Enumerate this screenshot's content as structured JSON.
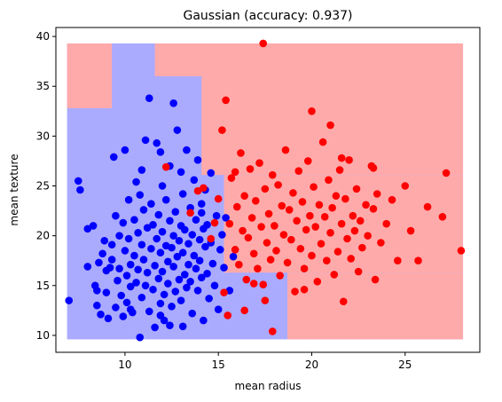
{
  "chart_data": {
    "type": "scatter",
    "title": "Gaussian (accuracy: 0.937)",
    "xlabel": "mean radius",
    "ylabel": "mean texture",
    "xlim": [
      6.3,
      29.0
    ],
    "ylim": [
      8.3,
      40.9
    ],
    "xticks": [
      10,
      15,
      20,
      25
    ],
    "yticks": [
      10,
      15,
      20,
      25,
      30,
      35,
      40
    ],
    "grid": false,
    "colors": {
      "class_a": "#0000ff",
      "class_b": "#ff0000",
      "region_a": "#aaaaff",
      "region_b": "#ffaaaa"
    },
    "decision_regions": {
      "extent_x": [
        6.9,
        28.1
      ],
      "extent_y": [
        9.6,
        39.3
      ],
      "region_b_rects": [
        {
          "x0": 6.9,
          "x1": 9.3,
          "y0": 32.8,
          "y1": 39.3
        },
        {
          "x0": 11.6,
          "x1": 28.1,
          "y0": 36.0,
          "y1": 39.3
        },
        {
          "x0": 14.1,
          "x1": 28.1,
          "y0": 26.1,
          "y1": 36.0
        },
        {
          "x0": 15.3,
          "x1": 28.1,
          "y0": 16.3,
          "y1": 26.1
        },
        {
          "x0": 18.7,
          "x1": 28.1,
          "y0": 9.6,
          "y1": 16.3
        }
      ]
    },
    "series": [
      {
        "class": "a",
        "points": [
          [
            7.0,
            13.5
          ],
          [
            7.5,
            25.5
          ],
          [
            7.6,
            24.6
          ],
          [
            8.0,
            16.9
          ],
          [
            8.0,
            20.7
          ],
          [
            8.3,
            21.0
          ],
          [
            8.4,
            15.0
          ],
          [
            8.5,
            13.0
          ],
          [
            8.5,
            14.5
          ],
          [
            8.6,
            17.3
          ],
          [
            8.7,
            12.1
          ],
          [
            8.8,
            18.2
          ],
          [
            8.9,
            19.5
          ],
          [
            9.0,
            16.5
          ],
          [
            9.0,
            14.3
          ],
          [
            9.1,
            11.7
          ],
          [
            9.2,
            16.8
          ],
          [
            9.3,
            19.1
          ],
          [
            9.3,
            17.6
          ],
          [
            9.4,
            27.9
          ],
          [
            9.5,
            12.8
          ],
          [
            9.5,
            22.0
          ],
          [
            9.6,
            15.5
          ],
          [
            9.7,
            20.0
          ],
          [
            9.7,
            16.7
          ],
          [
            9.8,
            14.0
          ],
          [
            9.9,
            21.3
          ],
          [
            10.0,
            28.6
          ],
          [
            10.0,
            18.5
          ],
          [
            10.1,
            13.3
          ],
          [
            10.1,
            16.0
          ],
          [
            10.2,
            23.6
          ],
          [
            10.2,
            19.7
          ],
          [
            10.3,
            17.1
          ],
          [
            10.3,
            14.9
          ],
          [
            10.4,
            12.3
          ],
          [
            10.5,
            21.6
          ],
          [
            10.5,
            18.0
          ],
          [
            10.6,
            25.4
          ],
          [
            10.6,
            15.3
          ],
          [
            10.7,
            20.3
          ],
          [
            10.7,
            16.6
          ],
          [
            10.8,
            9.8
          ],
          [
            10.8,
            24.1
          ],
          [
            10.9,
            13.8
          ],
          [
            10.9,
            19.1
          ],
          [
            11.0,
            22.6
          ],
          [
            11.0,
            17.6
          ],
          [
            11.1,
            15.0
          ],
          [
            11.1,
            29.6
          ],
          [
            11.2,
            20.8
          ],
          [
            11.2,
            16.3
          ],
          [
            11.3,
            33.8
          ],
          [
            11.3,
            12.4
          ],
          [
            11.4,
            18.7
          ],
          [
            11.4,
            23.2
          ],
          [
            11.5,
            14.6
          ],
          [
            11.5,
            21.1
          ],
          [
            11.6,
            10.8
          ],
          [
            11.6,
            17.0
          ],
          [
            11.7,
            19.7
          ],
          [
            11.7,
            29.3
          ],
          [
            11.8,
            15.7
          ],
          [
            11.8,
            22.1
          ],
          [
            11.9,
            13.2
          ],
          [
            11.9,
            18.3
          ],
          [
            12.0,
            25.0
          ],
          [
            12.0,
            16.4
          ],
          [
            12.0,
            20.4
          ],
          [
            12.1,
            14.1
          ],
          [
            12.1,
            11.5
          ],
          [
            12.2,
            19.0
          ],
          [
            12.2,
            23.6
          ],
          [
            12.3,
            17.4
          ],
          [
            12.3,
            15.2
          ],
          [
            12.4,
            27.0
          ],
          [
            12.4,
            21.5
          ],
          [
            12.5,
            18.8
          ],
          [
            12.5,
            12.9
          ],
          [
            12.6,
            16.9
          ],
          [
            12.6,
            20.0
          ],
          [
            12.7,
            14.4
          ],
          [
            12.7,
            22.4
          ],
          [
            12.8,
            17.9
          ],
          [
            12.8,
            30.6
          ],
          [
            12.9,
            19.5
          ],
          [
            12.9,
            15.6
          ],
          [
            13.0,
            21.0
          ],
          [
            13.0,
            13.5
          ],
          [
            13.1,
            18.3
          ],
          [
            13.1,
            24.2
          ],
          [
            13.2,
            16.1
          ],
          [
            13.2,
            20.6
          ],
          [
            13.3,
            14.8
          ],
          [
            13.3,
            28.6
          ],
          [
            13.4,
            19.2
          ],
          [
            13.4,
            17.1
          ],
          [
            13.5,
            22.8
          ],
          [
            13.5,
            15.4
          ],
          [
            13.6,
            20.1
          ],
          [
            13.6,
            12.2
          ],
          [
            13.7,
            18.0
          ],
          [
            13.7,
            25.6
          ],
          [
            13.8,
            16.7
          ],
          [
            13.8,
            21.6
          ],
          [
            13.9,
            14.5
          ],
          [
            13.9,
            27.6
          ],
          [
            14.0,
            19.6
          ],
          [
            14.0,
            17.5
          ],
          [
            14.1,
            15.8
          ],
          [
            14.1,
            22.3
          ],
          [
            14.2,
            20.7
          ],
          [
            14.2,
            11.5
          ],
          [
            14.3,
            18.9
          ],
          [
            14.3,
            24.6
          ],
          [
            14.4,
            16.2
          ],
          [
            14.4,
            21.1
          ],
          [
            14.5,
            13.7
          ],
          [
            14.6,
            19.3
          ],
          [
            14.6,
            26.3
          ],
          [
            14.7,
            17.2
          ],
          [
            14.8,
            15.0
          ],
          [
            14.9,
            22.0
          ],
          [
            15.0,
            12.6
          ],
          [
            15.1,
            18.6
          ],
          [
            15.2,
            20.1
          ],
          [
            15.3,
            16.8
          ],
          [
            15.4,
            21.8
          ],
          [
            15.6,
            14.5
          ],
          [
            15.8,
            17.9
          ],
          [
            11.9,
            12.0
          ],
          [
            12.4,
            11.0
          ],
          [
            13.1,
            10.9
          ],
          [
            10.3,
            12.6
          ],
          [
            9.9,
            11.9
          ],
          [
            12.6,
            33.3
          ],
          [
            14.1,
            23.2
          ],
          [
            13.0,
            26.4
          ],
          [
            10.9,
            26.6
          ],
          [
            11.9,
            28.4
          ]
        ]
      },
      {
        "class": "b",
        "points": [
          [
            12.2,
            26.9
          ],
          [
            13.5,
            22.3
          ],
          [
            14.2,
            24.8
          ],
          [
            14.6,
            19.7
          ],
          [
            15.0,
            23.7
          ],
          [
            15.2,
            30.6
          ],
          [
            15.3,
            14.3
          ],
          [
            15.4,
            33.6
          ],
          [
            15.5,
            12.0
          ],
          [
            15.6,
            21.2
          ],
          [
            15.7,
            25.8
          ],
          [
            15.9,
            18.6
          ],
          [
            16.0,
            22.9
          ],
          [
            16.1,
            17.1
          ],
          [
            16.2,
            28.3
          ],
          [
            16.3,
            20.5
          ],
          [
            16.4,
            24.0
          ],
          [
            16.5,
            15.6
          ],
          [
            16.6,
            19.8
          ],
          [
            16.7,
            26.7
          ],
          [
            16.8,
            21.8
          ],
          [
            16.9,
            18.2
          ],
          [
            17.0,
            23.5
          ],
          [
            17.1,
            16.7
          ],
          [
            17.2,
            27.3
          ],
          [
            17.3,
            20.9
          ],
          [
            17.4,
            39.3
          ],
          [
            17.4,
            15.1
          ],
          [
            17.5,
            24.7
          ],
          [
            17.6,
            19.3
          ],
          [
            17.7,
            22.2
          ],
          [
            17.8,
            17.6
          ],
          [
            17.9,
            10.4
          ],
          [
            17.9,
            26.1
          ],
          [
            18.0,
            21.0
          ],
          [
            18.1,
            18.5
          ],
          [
            18.2,
            25.1
          ],
          [
            18.3,
            16.0
          ],
          [
            18.4,
            23.0
          ],
          [
            18.5,
            20.1
          ],
          [
            18.6,
            28.6
          ],
          [
            18.7,
            17.3
          ],
          [
            18.8,
            22.6
          ],
          [
            18.9,
            19.6
          ],
          [
            19.0,
            24.3
          ],
          [
            19.1,
            14.4
          ],
          [
            19.2,
            21.5
          ],
          [
            19.3,
            26.5
          ],
          [
            19.4,
            18.7
          ],
          [
            19.5,
            23.4
          ],
          [
            19.6,
            16.7
          ],
          [
            19.7,
            20.6
          ],
          [
            19.8,
            27.5
          ],
          [
            19.9,
            22.0
          ],
          [
            20.0,
            32.5
          ],
          [
            20.0,
            18.0
          ],
          [
            20.1,
            24.9
          ],
          [
            20.2,
            20.9
          ],
          [
            20.3,
            15.4
          ],
          [
            20.4,
            23.1
          ],
          [
            20.5,
            19.2
          ],
          [
            20.6,
            29.4
          ],
          [
            20.7,
            21.9
          ],
          [
            20.8,
            17.5
          ],
          [
            20.9,
            25.6
          ],
          [
            21.0,
            31.1
          ],
          [
            21.0,
            20.3
          ],
          [
            21.1,
            22.8
          ],
          [
            21.2,
            16.1
          ],
          [
            21.3,
            24.0
          ],
          [
            21.4,
            18.4
          ],
          [
            21.5,
            26.6
          ],
          [
            21.6,
            21.2
          ],
          [
            21.7,
            13.4
          ],
          [
            21.8,
            23.7
          ],
          [
            21.9,
            19.7
          ],
          [
            22.0,
            27.6
          ],
          [
            22.1,
            17.7
          ],
          [
            22.2,
            22.0
          ],
          [
            22.3,
            20.5
          ],
          [
            22.4,
            24.7
          ],
          [
            22.5,
            16.4
          ],
          [
            22.6,
            21.5
          ],
          [
            22.7,
            18.8
          ],
          [
            22.9,
            23.1
          ],
          [
            23.0,
            20.0
          ],
          [
            23.2,
            27.0
          ],
          [
            23.3,
            22.7
          ],
          [
            23.4,
            15.6
          ],
          [
            23.5,
            24.2
          ],
          [
            23.7,
            19.3
          ],
          [
            24.0,
            21.2
          ],
          [
            24.3,
            23.6
          ],
          [
            24.6,
            17.5
          ],
          [
            25.0,
            25.0
          ],
          [
            25.3,
            20.5
          ],
          [
            25.7,
            17.5
          ],
          [
            26.2,
            22.9
          ],
          [
            27.0,
            21.9
          ],
          [
            27.2,
            26.3
          ],
          [
            28.0,
            18.5
          ],
          [
            13.9,
            24.5
          ],
          [
            14.8,
            21.3
          ],
          [
            15.9,
            26.4
          ],
          [
            16.4,
            12.5
          ],
          [
            16.9,
            15.2
          ],
          [
            17.5,
            13.5
          ],
          [
            19.6,
            14.6
          ],
          [
            21.6,
            27.8
          ],
          [
            23.3,
            26.8
          ]
        ]
      }
    ]
  }
}
